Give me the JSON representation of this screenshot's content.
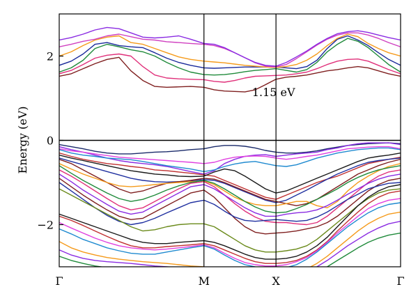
{
  "chart_data": {
    "type": "line",
    "title": "",
    "xlabel": "",
    "ylabel": "Energy (eV)",
    "x_ticks": [
      {
        "label": "Γ",
        "value": 0
      },
      {
        "label": "M",
        "value": 0.424
      },
      {
        "label": "X",
        "value": 0.635
      },
      {
        "label": "Γ",
        "value": 1
      }
    ],
    "xlim": [
      0,
      1
    ],
    "ylim": [
      -3,
      3
    ],
    "y_ticks": [
      {
        "label": "−2",
        "value": -2
      },
      {
        "label": "0",
        "value": 0
      },
      {
        "label": "2",
        "value": 2
      }
    ],
    "fermi_level": 0,
    "grid": false,
    "legend": "none",
    "x": [
      0,
      0.035,
      0.07,
      0.105,
      0.14,
      0.175,
      0.21,
      0.245,
      0.28,
      0.315,
      0.35,
      0.385,
      0.424,
      0.454,
      0.484,
      0.514,
      0.544,
      0.574,
      0.604,
      0.635,
      0.665,
      0.695,
      0.725,
      0.755,
      0.785,
      0.815,
      0.845,
      0.875,
      0.905,
      0.935,
      0.965,
      1.0
    ],
    "annotations": [
      {
        "text": "1.15 eV",
        "x": 0.565,
        "y": 1.15
      }
    ],
    "series": [
      {
        "color": "#7f1f1f",
        "values": [
          1.52,
          1.58,
          1.7,
          1.82,
          1.92,
          1.97,
          1.65,
          1.42,
          1.28,
          1.26,
          1.27,
          1.28,
          1.26,
          1.2,
          1.17,
          1.16,
          1.15,
          1.2,
          1.32,
          1.45,
          1.5,
          1.52,
          1.55,
          1.6,
          1.65,
          1.68,
          1.72,
          1.75,
          1.72,
          1.65,
          1.58,
          1.52
        ]
      },
      {
        "color": "#e0307a",
        "values": [
          1.58,
          1.66,
          1.8,
          1.95,
          2.02,
          2.05,
          2.0,
          1.75,
          1.55,
          1.48,
          1.46,
          1.45,
          1.44,
          1.4,
          1.38,
          1.42,
          1.48,
          1.52,
          1.53,
          1.54,
          1.55,
          1.58,
          1.62,
          1.7,
          1.8,
          1.88,
          1.92,
          1.93,
          1.88,
          1.78,
          1.68,
          1.58
        ]
      },
      {
        "color": "#1f8a3a",
        "values": [
          1.62,
          1.72,
          1.9,
          2.18,
          2.28,
          2.22,
          2.15,
          2.1,
          2.0,
          1.85,
          1.72,
          1.62,
          1.56,
          1.55,
          1.56,
          1.59,
          1.63,
          1.66,
          1.68,
          1.7,
          1.66,
          1.62,
          1.68,
          1.85,
          2.1,
          2.28,
          2.42,
          2.35,
          2.2,
          2.0,
          1.8,
          1.62
        ]
      },
      {
        "color": "#1a2a9a",
        "values": [
          1.78,
          1.88,
          2.05,
          2.28,
          2.32,
          2.25,
          2.22,
          2.2,
          2.08,
          1.95,
          1.85,
          1.78,
          1.72,
          1.71,
          1.72,
          1.73,
          1.74,
          1.74,
          1.74,
          1.74,
          1.72,
          1.7,
          1.75,
          1.9,
          2.18,
          2.4,
          2.48,
          2.38,
          2.25,
          2.08,
          1.92,
          1.78
        ]
      },
      {
        "color": "#f59a1a",
        "values": [
          2.0,
          2.1,
          2.25,
          2.38,
          2.45,
          2.48,
          2.32,
          2.28,
          2.18,
          2.08,
          1.98,
          1.92,
          1.88,
          1.86,
          1.84,
          1.81,
          1.78,
          1.76,
          1.74,
          1.73,
          1.75,
          1.8,
          1.9,
          2.05,
          2.25,
          2.42,
          2.52,
          2.46,
          2.3,
          2.18,
          2.08,
          2.0
        ]
      },
      {
        "color": "#d040c0",
        "values": [
          2.22,
          2.28,
          2.35,
          2.4,
          2.48,
          2.52,
          2.46,
          2.4,
          2.38,
          2.34,
          2.32,
          2.3,
          2.28,
          2.25,
          2.18,
          2.08,
          1.96,
          1.84,
          1.76,
          1.74,
          1.8,
          1.94,
          2.1,
          2.26,
          2.4,
          2.5,
          2.55,
          2.55,
          2.5,
          2.42,
          2.32,
          2.22
        ]
      },
      {
        "color": "#8a2be2",
        "values": [
          2.38,
          2.44,
          2.52,
          2.62,
          2.68,
          2.65,
          2.55,
          2.45,
          2.43,
          2.45,
          2.48,
          2.4,
          2.3,
          2.28,
          2.2,
          2.08,
          1.96,
          1.85,
          1.78,
          1.76,
          1.85,
          1.98,
          2.12,
          2.28,
          2.42,
          2.53,
          2.58,
          2.6,
          2.56,
          2.5,
          2.44,
          2.38
        ]
      },
      {
        "color": "#1a2a6a",
        "values": [
          -0.1,
          -0.15,
          -0.2,
          -0.26,
          -0.3,
          -0.32,
          -0.32,
          -0.3,
          -0.28,
          -0.27,
          -0.25,
          -0.22,
          -0.2,
          -0.15,
          -0.12,
          -0.12,
          -0.14,
          -0.18,
          -0.24,
          -0.28,
          -0.3,
          -0.3,
          -0.28,
          -0.25,
          -0.2,
          -0.16,
          -0.12,
          -0.1,
          -0.08,
          -0.07,
          -0.06,
          -0.08
        ]
      },
      {
        "color": "#8a2be2",
        "values": [
          -0.15,
          -0.22,
          -0.28,
          -0.35,
          -0.42,
          -0.48,
          -0.52,
          -0.55,
          -0.58,
          -0.62,
          -0.68,
          -0.74,
          -0.8,
          -0.72,
          -0.55,
          -0.45,
          -0.38,
          -0.35,
          -0.34,
          -0.38,
          -0.35,
          -0.32,
          -0.3,
          -0.28,
          -0.22,
          -0.18,
          -0.12,
          -0.08,
          -0.06,
          -0.06,
          -0.06,
          -0.1
        ]
      },
      {
        "color": "#e040e0",
        "values": [
          -0.2,
          -0.25,
          -0.28,
          -0.32,
          -0.36,
          -0.4,
          -0.42,
          -0.44,
          -0.46,
          -0.48,
          -0.5,
          -0.52,
          -0.55,
          -0.52,
          -0.45,
          -0.4,
          -0.38,
          -0.37,
          -0.38,
          -0.42,
          -0.45,
          -0.42,
          -0.38,
          -0.35,
          -0.3,
          -0.25,
          -0.2,
          -0.18,
          -0.16,
          -0.15,
          -0.15,
          -0.2
        ]
      },
      {
        "color": "#1f8ad0",
        "values": [
          -0.22,
          -0.3,
          -0.35,
          -0.38,
          -0.42,
          -0.44,
          -0.46,
          -0.5,
          -0.55,
          -0.6,
          -0.64,
          -0.68,
          -0.74,
          -0.7,
          -0.62,
          -0.56,
          -0.52,
          -0.5,
          -0.55,
          -0.6,
          -0.62,
          -0.58,
          -0.5,
          -0.42,
          -0.36,
          -0.3,
          -0.26,
          -0.22,
          -0.2,
          -0.18,
          -0.18,
          -0.22
        ]
      },
      {
        "color": "#c03030",
        "values": [
          -0.3,
          -0.38,
          -0.45,
          -0.5,
          -0.55,
          -0.58,
          -0.62,
          -0.65,
          -0.7,
          -0.72,
          -0.75,
          -0.78,
          -0.82,
          -0.85,
          -0.95,
          -1.05,
          -1.15,
          -1.25,
          -1.35,
          -1.4,
          -1.3,
          -1.2,
          -1.1,
          -1.0,
          -0.92,
          -0.85,
          -0.75,
          -0.65,
          -0.55,
          -0.5,
          -0.45,
          -0.4
        ]
      },
      {
        "color": "#1a1a1a",
        "values": [
          -0.35,
          -0.42,
          -0.48,
          -0.54,
          -0.6,
          -0.66,
          -0.72,
          -0.76,
          -0.8,
          -0.82,
          -0.85,
          -0.86,
          -0.85,
          -0.75,
          -0.68,
          -0.72,
          -0.85,
          -1.0,
          -1.15,
          -1.25,
          -1.2,
          -1.1,
          -1.0,
          -0.9,
          -0.8,
          -0.7,
          -0.6,
          -0.5,
          -0.42,
          -0.38,
          -0.35,
          -0.3
        ]
      },
      {
        "color": "#2030a0",
        "values": [
          -0.42,
          -0.5,
          -0.58,
          -0.66,
          -0.74,
          -0.82,
          -0.9,
          -0.95,
          -0.98,
          -0.99,
          -0.98,
          -0.96,
          -0.93,
          -0.95,
          -1.02,
          -1.12,
          -1.22,
          -1.32,
          -1.42,
          -1.48,
          -1.42,
          -1.3,
          -1.18,
          -1.05,
          -0.92,
          -0.8,
          -0.7,
          -0.6,
          -0.52,
          -0.48,
          -0.45,
          -0.42
        ]
      },
      {
        "color": "#7f1f1f",
        "values": [
          -0.45,
          -0.55,
          -0.7,
          -0.85,
          -1.0,
          -1.15,
          -1.25,
          -1.2,
          -1.1,
          -1.02,
          -0.98,
          -0.95,
          -0.9,
          -0.92,
          -1.0,
          -1.1,
          -1.2,
          -1.3,
          -1.4,
          -1.45,
          -1.5,
          -1.55,
          -1.5,
          -1.4,
          -1.25,
          -1.1,
          -0.95,
          -0.8,
          -0.7,
          -0.6,
          -0.52,
          -0.45
        ]
      },
      {
        "color": "#f59a1a",
        "values": [
          -0.55,
          -0.68,
          -0.8,
          -0.9,
          -1.0,
          -1.08,
          -1.1,
          -1.08,
          -1.05,
          -1.02,
          -1.0,
          -0.98,
          -0.96,
          -1.05,
          -1.2,
          -1.35,
          -1.45,
          -1.52,
          -1.55,
          -1.55,
          -1.5,
          -1.45,
          -1.45,
          -1.55,
          -1.6,
          -1.45,
          -1.2,
          -1.0,
          -0.85,
          -0.72,
          -0.62,
          -0.55
        ]
      },
      {
        "color": "#1f8a3a",
        "values": [
          -0.6,
          -0.78,
          -0.95,
          -1.1,
          -1.25,
          -1.38,
          -1.45,
          -1.4,
          -1.3,
          -1.18,
          -1.08,
          -1.0,
          -0.95,
          -1.02,
          -1.15,
          -1.3,
          -1.45,
          -1.58,
          -1.68,
          -1.72,
          -1.7,
          -1.62,
          -1.52,
          -1.4,
          -1.28,
          -1.15,
          -1.0,
          -0.88,
          -0.78,
          -0.7,
          -0.65,
          -0.6
        ]
      },
      {
        "color": "#e0307a",
        "values": [
          -0.7,
          -0.85,
          -1.02,
          -1.2,
          -1.38,
          -1.55,
          -1.65,
          -1.6,
          -1.45,
          -1.3,
          -1.15,
          -1.02,
          -0.98,
          -1.1,
          -1.3,
          -1.5,
          -1.68,
          -1.82,
          -1.92,
          -1.95,
          -1.95,
          -1.98,
          -2.0,
          -1.95,
          -1.8,
          -1.6,
          -1.4,
          -1.2,
          -1.0,
          -0.85,
          -0.75,
          -0.7
        ]
      },
      {
        "color": "#8a2be2",
        "values": [
          -0.8,
          -0.98,
          -1.18,
          -1.35,
          -1.52,
          -1.68,
          -1.75,
          -1.7,
          -1.55,
          -1.4,
          -1.25,
          -1.1,
          -1.05,
          -1.15,
          -1.3,
          -1.45,
          -1.6,
          -1.72,
          -1.8,
          -1.8,
          -1.75,
          -1.72,
          -1.7,
          -1.65,
          -1.55,
          -1.42,
          -1.28,
          -1.15,
          -1.02,
          -0.92,
          -0.85,
          -0.8
        ]
      },
      {
        "color": "#7f1f1f",
        "values": [
          -0.9,
          -1.1,
          -1.3,
          -1.48,
          -1.65,
          -1.8,
          -1.88,
          -1.85,
          -1.7,
          -1.55,
          -1.4,
          -1.25,
          -1.18,
          -1.35,
          -1.6,
          -1.85,
          -2.05,
          -2.18,
          -2.22,
          -2.2,
          -2.18,
          -2.15,
          -2.1,
          -2.05,
          -1.95,
          -1.8,
          -1.6,
          -1.4,
          -1.2,
          -1.05,
          -0.95,
          -0.9
        ]
      },
      {
        "color": "#2030a0",
        "values": [
          -1.0,
          -1.2,
          -1.4,
          -1.6,
          -1.78,
          -1.92,
          -2.0,
          -1.95,
          -1.85,
          -1.72,
          -1.6,
          -1.48,
          -1.42,
          -1.52,
          -1.68,
          -1.82,
          -1.9,
          -1.92,
          -1.9,
          -1.88,
          -1.9,
          -1.92,
          -1.9,
          -1.82,
          -1.7,
          -1.55,
          -1.4,
          -1.28,
          -1.15,
          -1.08,
          -1.02,
          -1.0
        ]
      },
      {
        "color": "#6a8a1a",
        "values": [
          -1.15,
          -1.3,
          -1.45,
          -1.6,
          -1.75,
          -1.9,
          -2.05,
          -2.15,
          -2.12,
          -2.05,
          -2.0,
          -1.98,
          -1.98,
          -2.05,
          -2.2,
          -2.35,
          -2.5,
          -2.6,
          -2.65,
          -2.65,
          -2.62,
          -2.58,
          -2.5,
          -2.35,
          -2.15,
          -1.95,
          -1.75,
          -1.55,
          -1.38,
          -1.25,
          -1.18,
          -1.15
        ]
      },
      {
        "color": "#1a1a1a",
        "values": [
          -1.75,
          -1.85,
          -1.95,
          -2.05,
          -2.15,
          -2.25,
          -2.35,
          -2.42,
          -2.45,
          -2.45,
          -2.42,
          -2.4,
          -2.38,
          -2.42,
          -2.5,
          -2.6,
          -2.7,
          -2.78,
          -2.82,
          -2.82,
          -2.8,
          -2.75,
          -2.65,
          -2.5,
          -2.3,
          -2.05,
          -1.8,
          -1.55,
          -1.35,
          -1.2,
          -1.1,
          -1.05
        ]
      },
      {
        "color": "#c03030",
        "values": [
          -1.8,
          -1.9,
          -2.02,
          -2.15,
          -2.28,
          -2.4,
          -2.5,
          -2.55,
          -2.55,
          -2.52,
          -2.5,
          -2.48,
          -2.45,
          -2.5,
          -2.6,
          -2.7,
          -2.8,
          -2.88,
          -2.92,
          -2.92,
          -2.9,
          -2.85,
          -2.75,
          -2.6,
          -2.4,
          -2.15,
          -1.92,
          -1.7,
          -1.5,
          -1.35,
          -1.25,
          -1.2
        ]
      },
      {
        "color": "#e040e0",
        "values": [
          -1.95,
          -2.08,
          -2.2,
          -2.32,
          -2.42,
          -2.5,
          -2.55,
          -2.58,
          -2.6,
          -2.58,
          -2.55,
          -2.52,
          -2.48,
          -2.55,
          -2.68,
          -2.8,
          -2.9,
          -2.95,
          -2.98,
          -2.98,
          -2.95,
          -2.88,
          -2.78,
          -2.62,
          -2.42,
          -2.2,
          -2.0,
          -1.8,
          -1.62,
          -1.5,
          -1.42,
          -1.38
        ]
      },
      {
        "color": "#1f8ad0",
        "values": [
          -2.1,
          -2.22,
          -2.35,
          -2.45,
          -2.55,
          -2.62,
          -2.68,
          -2.7,
          -2.7,
          -2.65,
          -2.6,
          -2.55,
          -2.5,
          -2.58,
          -2.72,
          -2.85,
          -2.95,
          -3.0,
          -3.05,
          -3.05,
          -3.02,
          -2.95,
          -2.82,
          -2.65,
          -2.45,
          -2.25,
          -2.05,
          -1.88,
          -1.72,
          -1.6,
          -1.52,
          -1.48
        ]
      },
      {
        "color": "#f59a1a",
        "values": [
          -2.4,
          -2.55,
          -2.65,
          -2.72,
          -2.78,
          -2.82,
          -2.85,
          -2.88,
          -2.9,
          -2.92,
          -2.95,
          -2.98,
          -3.0,
          -3.05,
          -3.1,
          -3.1,
          -3.1,
          -3.1,
          -3.1,
          -3.1,
          -3.1,
          -3.1,
          -3.05,
          -2.92,
          -2.75,
          -2.55,
          -2.35,
          -2.15,
          -1.98,
          -1.85,
          -1.75,
          -1.7
        ]
      },
      {
        "color": "#8a2be2",
        "values": [
          -2.6,
          -2.72,
          -2.8,
          -2.85,
          -2.88,
          -2.9,
          -2.92,
          -2.95,
          -2.98,
          -3.0,
          -3.02,
          -3.05,
          -3.1,
          -3.1,
          -3.1,
          -3.1,
          -3.1,
          -3.1,
          -3.1,
          -3.1,
          -3.1,
          -3.1,
          -3.1,
          -3.0,
          -2.85,
          -2.68,
          -2.5,
          -2.35,
          -2.2,
          -2.08,
          -1.98,
          -1.92
        ]
      },
      {
        "color": "#1f8a3a",
        "values": [
          -2.75,
          -2.85,
          -2.92,
          -2.98,
          -3.02,
          -3.05,
          -3.08,
          -3.1,
          -3.1,
          -3.1,
          -3.1,
          -3.1,
          -3.1,
          -3.1,
          -3.1,
          -3.1,
          -3.1,
          -3.1,
          -3.1,
          -3.1,
          -3.1,
          -3.1,
          -3.1,
          -3.1,
          -3.0,
          -2.85,
          -2.7,
          -2.55,
          -2.42,
          -2.32,
          -2.25,
          -2.2
        ]
      }
    ]
  }
}
